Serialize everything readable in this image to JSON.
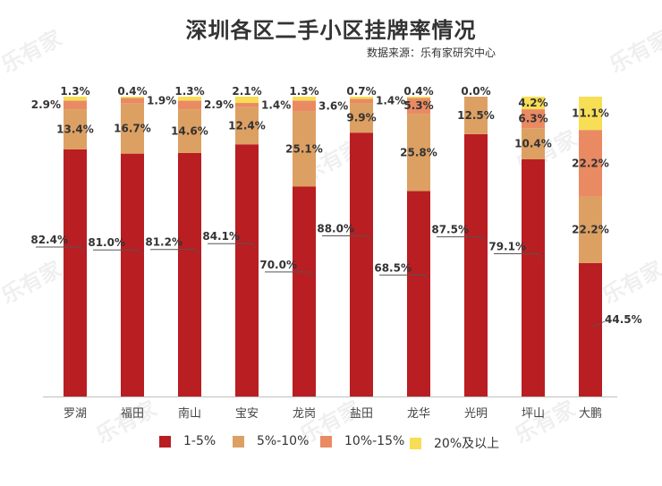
{
  "title": "深圳各区二手小区挂牌率情况",
  "source": "数据来源：乐有家研究中心",
  "watermark": "乐有家",
  "colors": {
    "s1": "#B91E22",
    "s2": "#DDA063",
    "s3": "#EA8A62",
    "s4": "#F7DE55",
    "axis": "#BFBFBF",
    "leader": "#555555"
  },
  "legend": [
    {
      "name": "1-5%",
      "color": "#B91E22"
    },
    {
      "name": "5%-10%",
      "color": "#DDA063"
    },
    {
      "name": "10%-15%",
      "color": "#EA8A62"
    },
    {
      "name": "20%及以上",
      "color": "#F7DE55"
    }
  ],
  "chart_data": {
    "type": "bar",
    "stacked": true,
    "percent_stacked": true,
    "title": "深圳各区二手小区挂牌率情况",
    "categories": [
      "罗湖",
      "福田",
      "南山",
      "宝安",
      "龙岗",
      "盐田",
      "龙华",
      "光明",
      "坪山",
      "大鹏"
    ],
    "series": [
      {
        "name": "1-5%",
        "values": [
          82.4,
          81.0,
          81.2,
          84.1,
          70.0,
          88.0,
          68.5,
          87.5,
          79.1,
          44.5
        ],
        "labels": [
          "82.4%",
          "81.0%",
          "81.2%",
          "84.1%",
          "70.0%",
          "88.0%",
          "68.5%",
          "87.5%",
          "79.1%",
          "44.5%"
        ]
      },
      {
        "name": "5%-10%",
        "values": [
          13.4,
          16.7,
          14.6,
          12.4,
          25.1,
          9.9,
          25.8,
          12.5,
          10.4,
          22.2
        ],
        "labels": [
          "13.4%",
          "16.7%",
          "14.6%",
          "12.4%",
          "25.1%",
          "9.9%",
          "25.8%",
          "12.5%",
          "10.4%",
          "22.2%"
        ]
      },
      {
        "name": "10%-15%",
        "values": [
          2.9,
          1.9,
          2.9,
          1.4,
          3.6,
          1.4,
          5.3,
          0.0,
          6.3,
          22.2
        ],
        "labels": [
          "2.9%",
          "1.9%",
          "2.9%",
          "1.4%",
          "3.6%",
          "1.4%",
          "5.3%",
          "",
          "6.3%",
          "22.2%"
        ]
      },
      {
        "name": "20%及以上",
        "values": [
          1.3,
          0.4,
          1.3,
          2.1,
          1.3,
          0.7,
          0.4,
          0.0,
          4.2,
          11.1
        ],
        "labels": [
          "1.3%",
          "0.4%",
          "1.3%",
          "2.1%",
          "1.3%",
          "0.7%",
          "0.4%",
          "0.0%",
          "4.2%",
          "11.1%"
        ]
      }
    ],
    "ylim": [
      0,
      100
    ],
    "legend_position": "bottom"
  }
}
